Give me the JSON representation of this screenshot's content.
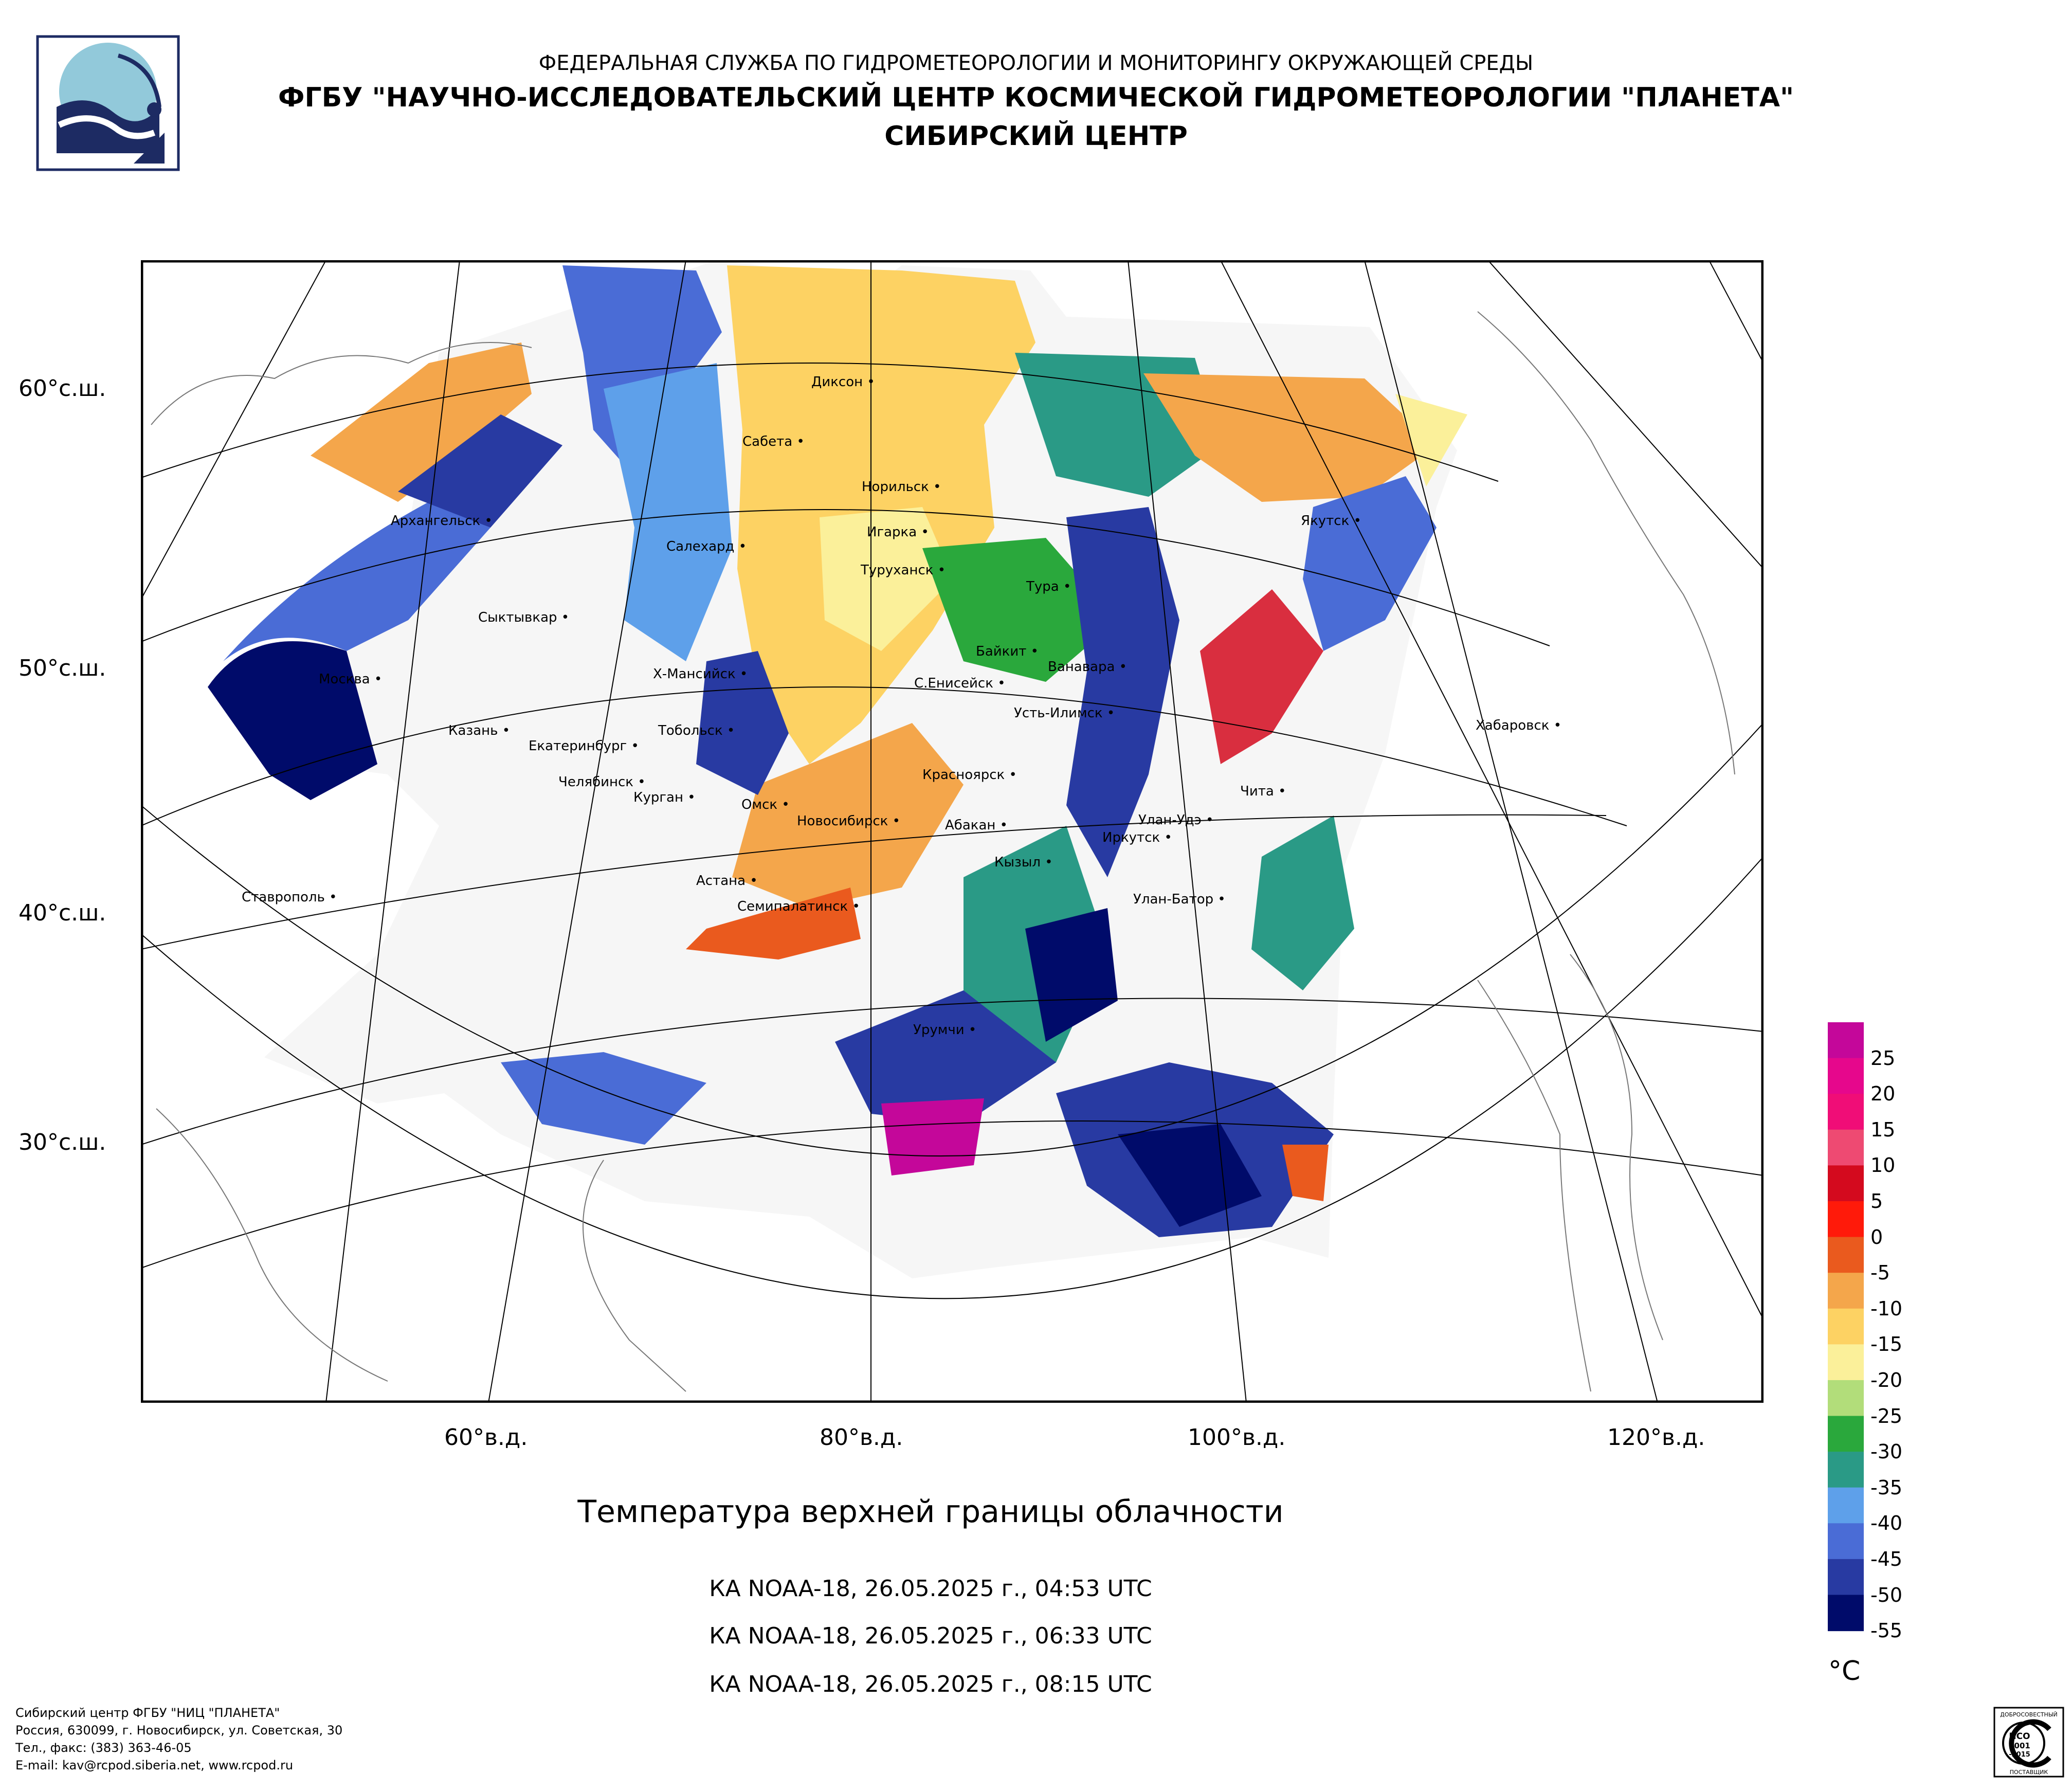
{
  "header": {
    "line1": "ФЕДЕРАЛЬНАЯ СЛУЖБА ПО ГИДРОМЕТЕОРОЛОГИИ И МОНИТОРИНГУ ОКРУЖАЮЩЕЙ СРЕДЫ",
    "line2": "ФГБУ \"НАУЧНО-ИССЛЕДОВАТЕЛЬСКИЙ ЦЕНТР КОСМИЧЕСКОЙ ГИДРОМЕТЕОРОЛОГИИ \"ПЛАНЕТА\"",
    "line3": "СИБИРСКИЙ ЦЕНТР"
  },
  "map": {
    "lat_labels": [
      "60°с.ш.",
      "50°с.ш.",
      "40°с.ш.",
      "30°с.ш."
    ],
    "lon_labels": [
      "60°в.д.",
      "80°в.д.",
      "100°в.д.",
      "120°в.д."
    ],
    "cities": [
      "Диксон",
      "Сабета",
      "Норильск",
      "Архангельск",
      "Салехард",
      "Игарка",
      "Туруханск",
      "Якутск",
      "Тура",
      "Сыктывкар",
      "Байкит",
      "Ванавара",
      "Москва",
      "Х-Мансийск",
      "С.Енисейск",
      "Усть-Илимск",
      "Хабаровск",
      "Казань",
      "Тобольск",
      "Екатеринбург",
      "Челябинск",
      "Курган",
      "Красноярск",
      "Омск",
      "Новосибирск",
      "Чита",
      "Абакан",
      "Улан-Удэ",
      "Иркутск",
      "Кызыл",
      "Астана",
      "Ставрополь",
      "Улан-Батор",
      "Семипалатинск",
      "Урумчи"
    ]
  },
  "title": "Температура верхней границы облачности",
  "passes": [
    "КА NOAA-18, 26.05.2025 г., 04:53 UTC",
    "КА NOAA-18, 26.05.2025 г., 06:33 UTC",
    "КА NOAA-18, 26.05.2025 г., 08:15 UTC"
  ],
  "legend": {
    "unit": "°C",
    "labels": [
      "25",
      "20",
      "15",
      "10",
      "5",
      "0",
      "-5",
      "-10",
      "-15",
      "-20",
      "-25",
      "-30",
      "-35",
      "-40",
      "-45",
      "-50",
      "-55"
    ],
    "colors": [
      "#c4079a",
      "#e6078c",
      "#f00d77",
      "#ee4a72",
      "#d40a1e",
      "#ff1a0a",
      "#ea5a1e",
      "#f4a64b",
      "#fdd263",
      "#fbf09a",
      "#b2dd7a",
      "#2aa83c",
      "#2a9a86",
      "#5ea0ea",
      "#4a6cd6",
      "#283aa2",
      "#000b6a"
    ]
  },
  "footer": {
    "line1": "Сибирский центр ФГБУ \"НИЦ \"ПЛАНЕТА\"",
    "line2": "Россия, 630099, г. Новосибирск, ул. Советская, 30",
    "line3": "Тел., факс: (383) 363-46-05",
    "line4": "E-mail: kav@rcpod.siberia.net, www.rcpod.ru"
  },
  "iso": {
    "top": "ДОБРОСОВЕСТНЫЙ",
    "main": "ИСО",
    "num": "9001",
    "year": "-2015",
    "bottom": "ПОСТАВЩИК"
  }
}
